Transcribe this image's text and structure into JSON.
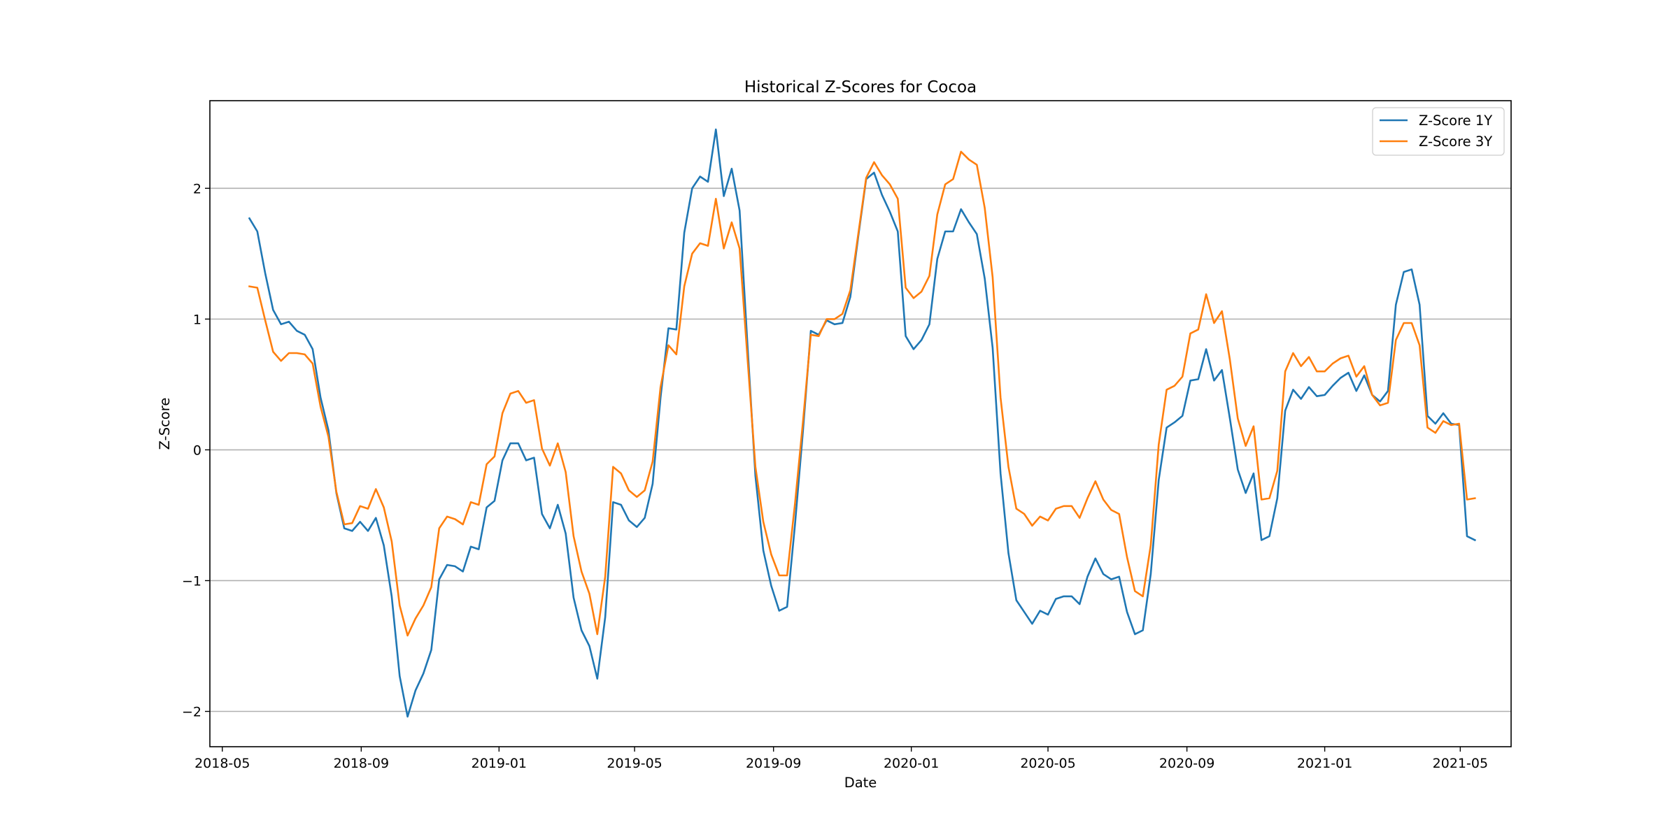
{
  "chart_data": {
    "type": "line",
    "title": "Historical Z-Scores for Cocoa",
    "xlabel": "Date",
    "ylabel": "Z-Score",
    "xlim": [
      "2018-04-20",
      "2021-06-15"
    ],
    "ylim": [
      -2.27,
      2.67
    ],
    "grid": "horizontal",
    "legend_position": "top-right",
    "x_ticks": [
      "2018-05",
      "2018-09",
      "2019-01",
      "2019-05",
      "2019-09",
      "2020-01",
      "2020-05",
      "2020-09",
      "2021-01",
      "2021-05"
    ],
    "y_ticks": [
      {
        "value": -2,
        "label": "−2"
      },
      {
        "value": -1,
        "label": "−1"
      },
      {
        "value": 0,
        "label": "0"
      },
      {
        "value": 1,
        "label": "1"
      },
      {
        "value": 2,
        "label": "2"
      }
    ],
    "x": [
      "2018-05-25",
      "2018-06-01",
      "2018-06-08",
      "2018-06-15",
      "2018-06-22",
      "2018-06-29",
      "2018-07-06",
      "2018-07-13",
      "2018-07-20",
      "2018-07-27",
      "2018-08-03",
      "2018-08-10",
      "2018-08-17",
      "2018-08-24",
      "2018-08-31",
      "2018-09-07",
      "2018-09-14",
      "2018-09-21",
      "2018-09-28",
      "2018-10-05",
      "2018-10-12",
      "2018-10-19",
      "2018-10-26",
      "2018-11-02",
      "2018-11-09",
      "2018-11-16",
      "2018-11-23",
      "2018-11-30",
      "2018-12-07",
      "2018-12-14",
      "2018-12-21",
      "2018-12-28",
      "2019-01-04",
      "2019-01-11",
      "2019-01-18",
      "2019-01-25",
      "2019-02-01",
      "2019-02-08",
      "2019-02-15",
      "2019-02-22",
      "2019-03-01",
      "2019-03-08",
      "2019-03-15",
      "2019-03-22",
      "2019-03-29",
      "2019-04-05",
      "2019-04-12",
      "2019-04-19",
      "2019-04-26",
      "2019-05-03",
      "2019-05-10",
      "2019-05-17",
      "2019-05-24",
      "2019-05-31",
      "2019-06-07",
      "2019-06-14",
      "2019-06-21",
      "2019-06-28",
      "2019-07-05",
      "2019-07-12",
      "2019-07-19",
      "2019-07-26",
      "2019-08-02",
      "2019-08-09",
      "2019-08-16",
      "2019-08-23",
      "2019-08-30",
      "2019-09-06",
      "2019-09-13",
      "2019-09-20",
      "2019-09-27",
      "2019-10-04",
      "2019-10-11",
      "2019-10-18",
      "2019-10-25",
      "2019-11-01",
      "2019-11-08",
      "2019-11-15",
      "2019-11-22",
      "2019-11-29",
      "2019-12-06",
      "2019-12-13",
      "2019-12-20",
      "2019-12-27",
      "2020-01-03",
      "2020-01-10",
      "2020-01-17",
      "2020-01-24",
      "2020-01-31",
      "2020-02-07",
      "2020-02-14",
      "2020-02-21",
      "2020-02-28",
      "2020-03-06",
      "2020-03-13",
      "2020-03-20",
      "2020-03-27",
      "2020-04-03",
      "2020-04-10",
      "2020-04-17",
      "2020-04-24",
      "2020-05-01",
      "2020-05-08",
      "2020-05-15",
      "2020-05-22",
      "2020-05-29",
      "2020-06-05",
      "2020-06-12",
      "2020-06-19",
      "2020-06-26",
      "2020-07-03",
      "2020-07-10",
      "2020-07-17",
      "2020-07-24",
      "2020-07-31",
      "2020-08-07",
      "2020-08-14",
      "2020-08-21",
      "2020-08-28",
      "2020-09-04",
      "2020-09-11",
      "2020-09-18",
      "2020-09-25",
      "2020-10-02",
      "2020-10-09",
      "2020-10-16",
      "2020-10-23",
      "2020-10-30",
      "2020-11-06",
      "2020-11-13",
      "2020-11-20",
      "2020-11-27",
      "2020-12-04",
      "2020-12-11",
      "2020-12-18",
      "2020-12-25",
      "2021-01-01",
      "2021-01-08",
      "2021-01-15",
      "2021-01-22",
      "2021-01-29",
      "2021-02-05",
      "2021-02-12",
      "2021-02-19",
      "2021-02-26",
      "2021-03-05",
      "2021-03-12",
      "2021-03-19",
      "2021-03-26",
      "2021-04-02",
      "2021-04-09",
      "2021-04-16",
      "2021-04-23",
      "2021-04-30",
      "2021-05-07",
      "2021-05-14"
    ],
    "series": [
      {
        "name": "Z-Score 1Y",
        "color": "#1f77b4",
        "values": [
          1.77,
          1.67,
          1.35,
          1.07,
          0.96,
          0.98,
          0.91,
          0.88,
          0.77,
          0.4,
          0.15,
          -0.33,
          -0.6,
          -0.62,
          -0.55,
          -0.62,
          -0.52,
          -0.73,
          -1.12,
          -1.73,
          -2.04,
          -1.84,
          -1.71,
          -1.53,
          -0.99,
          -0.88,
          -0.89,
          -0.93,
          -0.74,
          -0.76,
          -0.44,
          -0.39,
          -0.08,
          0.05,
          0.05,
          -0.08,
          -0.06,
          -0.49,
          -0.6,
          -0.42,
          -0.64,
          -1.13,
          -1.38,
          -1.5,
          -1.75,
          -1.28,
          -0.4,
          -0.42,
          -0.54,
          -0.59,
          -0.52,
          -0.26,
          0.4,
          0.93,
          0.92,
          1.66,
          2.0,
          2.09,
          2.05,
          2.45,
          1.94,
          2.15,
          1.83,
          0.8,
          -0.2,
          -0.77,
          -1.04,
          -1.23,
          -1.2,
          -0.57,
          0.14,
          0.91,
          0.88,
          0.99,
          0.96,
          0.97,
          1.17,
          1.63,
          2.07,
          2.12,
          1.95,
          1.82,
          1.67,
          0.87,
          0.77,
          0.84,
          0.96,
          1.46,
          1.67,
          1.67,
          1.84,
          1.74,
          1.65,
          1.31,
          0.78,
          -0.18,
          -0.79,
          -1.15,
          -1.24,
          -1.33,
          -1.23,
          -1.26,
          -1.14,
          -1.12,
          -1.12,
          -1.18,
          -0.97,
          -0.83,
          -0.95,
          -0.99,
          -0.97,
          -1.24,
          -1.41,
          -1.38,
          -0.95,
          -0.23,
          0.17,
          0.21,
          0.26,
          0.53,
          0.54,
          0.77,
          0.53,
          0.61,
          0.24,
          -0.15,
          -0.33,
          -0.18,
          -0.69,
          -0.66,
          -0.37,
          0.3,
          0.46,
          0.39,
          0.48,
          0.41,
          0.42,
          0.49,
          0.55,
          0.59,
          0.45,
          0.57,
          0.42,
          0.37,
          0.45,
          1.11,
          1.36,
          1.38,
          1.11,
          0.26,
          0.2,
          0.28,
          0.2,
          0.19,
          -0.66,
          -0.69
        ]
      },
      {
        "name": "Z-Score 3Y",
        "color": "#ff7f0e",
        "values": [
          1.25,
          1.24,
          0.99,
          0.75,
          0.68,
          0.74,
          0.74,
          0.73,
          0.66,
          0.33,
          0.1,
          -0.32,
          -0.57,
          -0.56,
          -0.43,
          -0.45,
          -0.3,
          -0.44,
          -0.7,
          -1.19,
          -1.42,
          -1.29,
          -1.19,
          -1.05,
          -0.6,
          -0.51,
          -0.53,
          -0.57,
          -0.4,
          -0.42,
          -0.11,
          -0.05,
          0.28,
          0.43,
          0.45,
          0.36,
          0.38,
          0.01,
          -0.12,
          0.05,
          -0.17,
          -0.66,
          -0.93,
          -1.1,
          -1.41,
          -0.97,
          -0.13,
          -0.18,
          -0.31,
          -0.36,
          -0.31,
          -0.09,
          0.48,
          0.8,
          0.73,
          1.25,
          1.5,
          1.58,
          1.56,
          1.92,
          1.54,
          1.74,
          1.54,
          0.7,
          -0.13,
          -0.55,
          -0.8,
          -0.96,
          -0.96,
          -0.41,
          0.21,
          0.88,
          0.87,
          1.0,
          1.0,
          1.04,
          1.22,
          1.65,
          2.08,
          2.2,
          2.1,
          2.03,
          1.92,
          1.24,
          1.16,
          1.21,
          1.33,
          1.8,
          2.03,
          2.07,
          2.28,
          2.22,
          2.18,
          1.85,
          1.32,
          0.4,
          -0.13,
          -0.45,
          -0.49,
          -0.58,
          -0.51,
          -0.54,
          -0.45,
          -0.43,
          -0.43,
          -0.52,
          -0.37,
          -0.24,
          -0.38,
          -0.46,
          -0.49,
          -0.82,
          -1.08,
          -1.12,
          -0.73,
          0.04,
          0.46,
          0.49,
          0.56,
          0.89,
          0.92,
          1.19,
          0.97,
          1.06,
          0.69,
          0.24,
          0.03,
          0.18,
          -0.38,
          -0.37,
          -0.16,
          0.6,
          0.74,
          0.64,
          0.71,
          0.6,
          0.6,
          0.66,
          0.7,
          0.72,
          0.56,
          0.64,
          0.42,
          0.34,
          0.36,
          0.84,
          0.97,
          0.97,
          0.8,
          0.17,
          0.13,
          0.22,
          0.19,
          0.2,
          -0.38,
          -0.37
        ]
      }
    ]
  }
}
